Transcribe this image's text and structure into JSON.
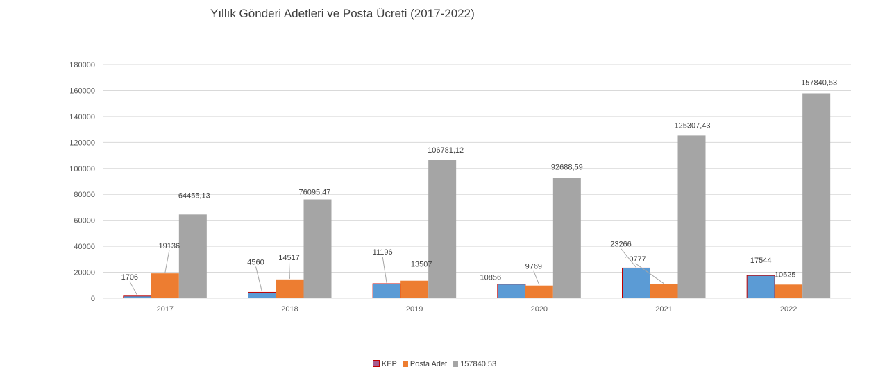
{
  "chart_data": {
    "type": "bar",
    "title": "Yıllık Gönderi Adetleri ve Posta Ücreti (2017-2022)",
    "xlabel": "",
    "ylabel": "",
    "categories": [
      "2017",
      "2018",
      "2019",
      "2020",
      "2021",
      "2022"
    ],
    "ylim": [
      0,
      180000
    ],
    "yticks": [
      0,
      20000,
      40000,
      60000,
      80000,
      100000,
      120000,
      140000,
      160000,
      180000
    ],
    "grid": true,
    "legend_position": "bottom",
    "series": [
      {
        "name": "KEP",
        "color": "#5B9BD5",
        "legend_color": "#A65C8F",
        "outline": "#C00000",
        "values": [
          1706,
          4560,
          11196,
          10856,
          23266,
          17544
        ],
        "labels": [
          "1706",
          "4560",
          "11196",
          "10856",
          "23266",
          "17544"
        ]
      },
      {
        "name": "Posta Adet",
        "color": "#ED7D31",
        "values": [
          19136,
          14517,
          13507,
          9769,
          10777,
          10525
        ],
        "labels": [
          "19136",
          "14517",
          "13507",
          "9769",
          "10777",
          "10525"
        ]
      },
      {
        "name": "157840,53",
        "color": "#A5A5A5",
        "values": [
          64455.13,
          76095.47,
          106781.12,
          92688.59,
          125307.43,
          157840.53
        ],
        "labels": [
          "64455,13",
          "76095,47",
          "106781,12",
          "92688,59",
          "125307,43",
          "157840,53"
        ]
      }
    ]
  }
}
